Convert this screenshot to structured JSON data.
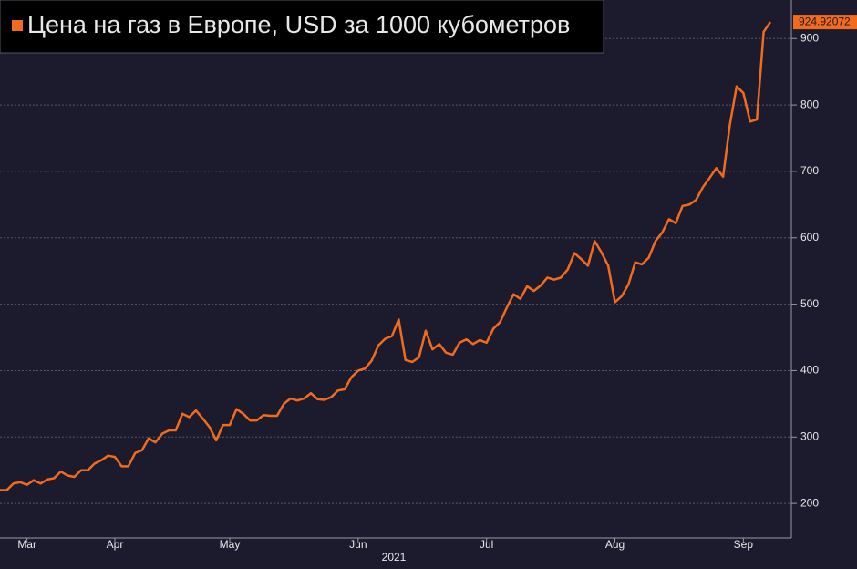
{
  "chart_data": {
    "type": "line",
    "series": [
      {
        "name": "Цена на газ в Европе, USD за 1000 кубометров",
        "color": "#f26b1d",
        "values": [
          220,
          220,
          230,
          232,
          228,
          235,
          230,
          236,
          238,
          248,
          242,
          240,
          250,
          250,
          260,
          265,
          272,
          270,
          256,
          256,
          276,
          280,
          298,
          292,
          305,
          310,
          310,
          335,
          330,
          340,
          328,
          315,
          295,
          318,
          318,
          342,
          335,
          325,
          325,
          333,
          332,
          332,
          350,
          358,
          355,
          358,
          366,
          357,
          356,
          360,
          370,
          372,
          390,
          400,
          403,
          415,
          438,
          448,
          452,
          477,
          416,
          413,
          420,
          460,
          432,
          440,
          427,
          424,
          442,
          447,
          440,
          446,
          442,
          463,
          473,
          495,
          515,
          508,
          527,
          520,
          528,
          540,
          537,
          540,
          552,
          577,
          568,
          558,
          595,
          578,
          558,
          503,
          512,
          530,
          563,
          560,
          570,
          595,
          608,
          628,
          622,
          648,
          650,
          657,
          676,
          690,
          705,
          692,
          770,
          828,
          818,
          775,
          778,
          910,
          924.92072
        ]
      }
    ],
    "categories": [
      null,
      null,
      null,
      null,
      "Mar",
      null,
      null,
      null,
      null,
      null,
      null,
      null,
      null,
      null,
      null,
      null,
      null,
      "Apr",
      null,
      null,
      null,
      null,
      null,
      null,
      null,
      null,
      null,
      null,
      null,
      null,
      null,
      null,
      null,
      null,
      "May",
      null,
      null,
      null,
      null,
      null,
      null,
      null,
      null,
      null,
      null,
      null,
      null,
      null,
      null,
      null,
      null,
      null,
      null,
      "Jun",
      null,
      null,
      null,
      null,
      null,
      null,
      null,
      null,
      null,
      null,
      null,
      null,
      null,
      null,
      null,
      null,
      null,
      null,
      "Jul",
      null,
      null,
      null,
      null,
      null,
      null,
      null,
      null,
      null,
      null,
      null,
      null,
      null,
      null,
      null,
      null,
      null,
      null,
      "Aug",
      null,
      null,
      null,
      null,
      null,
      null,
      null,
      null,
      null,
      null,
      null,
      null,
      null,
      null,
      null,
      null,
      null,
      null,
      "Sep",
      null,
      null,
      null,
      null
    ],
    "x_label": "2021",
    "ylim": [
      148,
      958
    ],
    "yticks": [
      200,
      300,
      400,
      500,
      600,
      700,
      800,
      900
    ],
    "grid": true,
    "legend": "top-left"
  }
}
